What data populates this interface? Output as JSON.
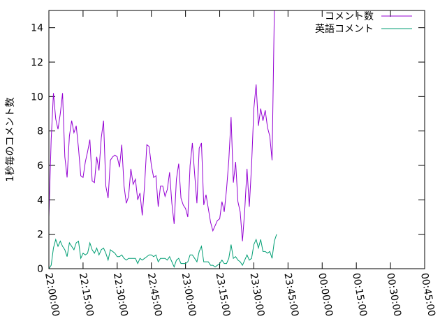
{
  "chart_data": {
    "type": "line",
    "title": "",
    "xlabel": "",
    "ylabel": "1秒毎のコメント数",
    "xlim": [
      0,
      165
    ],
    "ylim": [
      0,
      15
    ],
    "x_ticks": [
      {
        "value": 0,
        "label": "22:00:00"
      },
      {
        "value": 15,
        "label": "22:15:00"
      },
      {
        "value": 30,
        "label": "22:30:00"
      },
      {
        "value": 45,
        "label": "22:45:00"
      },
      {
        "value": 60,
        "label": "23:00:00"
      },
      {
        "value": 75,
        "label": "23:15:00"
      },
      {
        "value": 90,
        "label": "23:30:00"
      },
      {
        "value": 105,
        "label": "23:45:00"
      },
      {
        "value": 120,
        "label": "00:00:00"
      },
      {
        "value": 135,
        "label": "00:15:00"
      },
      {
        "value": 150,
        "label": "00:30:00"
      },
      {
        "value": 165,
        "label": "00:45:00"
      }
    ],
    "y_ticks": [
      0,
      2,
      4,
      6,
      8,
      10,
      12,
      14
    ],
    "grid": false,
    "legend": "top-right",
    "series": [
      {
        "name": "コメント数",
        "color": "#9400d3",
        "points": [
          [
            0,
            3.0
          ],
          [
            1,
            7.5
          ],
          [
            2,
            10.2
          ],
          [
            3,
            8.7
          ],
          [
            4,
            8.1
          ],
          [
            5,
            9.0
          ],
          [
            6,
            10.2
          ],
          [
            7,
            6.5
          ],
          [
            8,
            5.3
          ],
          [
            9,
            7.7
          ],
          [
            10,
            8.6
          ],
          [
            11,
            7.9
          ],
          [
            12,
            8.3
          ],
          [
            13,
            7.0
          ],
          [
            14,
            5.4
          ],
          [
            15,
            5.3
          ],
          [
            16,
            6.2
          ],
          [
            17,
            6.8
          ],
          [
            18,
            7.5
          ],
          [
            19,
            5.1
          ],
          [
            20,
            5.0
          ],
          [
            21,
            6.5
          ],
          [
            22,
            5.7
          ],
          [
            23,
            7.6
          ],
          [
            24,
            8.6
          ],
          [
            25,
            4.8
          ],
          [
            26,
            4.1
          ],
          [
            27,
            6.3
          ],
          [
            28,
            6.5
          ],
          [
            29,
            6.6
          ],
          [
            30,
            6.5
          ],
          [
            31,
            5.9
          ],
          [
            32,
            7.2
          ],
          [
            33,
            4.8
          ],
          [
            34,
            3.8
          ],
          [
            35,
            4.2
          ],
          [
            36,
            5.8
          ],
          [
            37,
            4.9
          ],
          [
            38,
            5.2
          ],
          [
            39,
            4.0
          ],
          [
            40,
            4.4
          ],
          [
            41,
            3.1
          ],
          [
            42,
            4.8
          ],
          [
            43,
            7.2
          ],
          [
            44,
            7.1
          ],
          [
            45,
            6.0
          ],
          [
            46,
            5.3
          ],
          [
            47,
            5.4
          ],
          [
            48,
            3.6
          ],
          [
            49,
            4.8
          ],
          [
            50,
            4.8
          ],
          [
            51,
            4.2
          ],
          [
            52,
            4.6
          ],
          [
            53,
            5.6
          ],
          [
            54,
            3.8
          ],
          [
            55,
            2.6
          ],
          [
            56,
            5.2
          ],
          [
            57,
            6.1
          ],
          [
            58,
            4.1
          ],
          [
            59,
            3.7
          ],
          [
            60,
            3.5
          ],
          [
            61,
            3.0
          ],
          [
            62,
            6.0
          ],
          [
            63,
            7.3
          ],
          [
            64,
            5.5
          ],
          [
            65,
            3.8
          ],
          [
            66,
            7.0
          ],
          [
            67,
            7.3
          ],
          [
            68,
            3.7
          ],
          [
            69,
            4.3
          ],
          [
            70,
            3.5
          ],
          [
            71,
            2.7
          ],
          [
            72,
            2.2
          ],
          [
            73,
            2.5
          ],
          [
            74,
            2.8
          ],
          [
            75,
            2.9
          ],
          [
            76,
            3.9
          ],
          [
            77,
            3.3
          ],
          [
            78,
            4.6
          ],
          [
            79,
            6.3
          ],
          [
            80,
            8.8
          ],
          [
            81,
            5.0
          ],
          [
            82,
            6.2
          ],
          [
            83,
            3.9
          ],
          [
            84,
            3.3
          ],
          [
            85,
            1.6
          ],
          [
            86,
            3.4
          ],
          [
            87,
            5.8
          ],
          [
            88,
            3.6
          ],
          [
            89,
            6.0
          ],
          [
            90,
            9.3
          ],
          [
            91,
            10.7
          ],
          [
            92,
            8.3
          ],
          [
            93,
            9.3
          ],
          [
            94,
            8.6
          ],
          [
            95,
            9.2
          ],
          [
            96,
            8.2
          ],
          [
            97,
            7.7
          ],
          [
            98,
            6.3
          ],
          [
            99,
            15.0
          ]
        ]
      },
      {
        "name": "英語コメント",
        "color": "#009e73",
        "points": [
          [
            0,
            0.0
          ],
          [
            1,
            0.2
          ],
          [
            2,
            1.2
          ],
          [
            3,
            1.7
          ],
          [
            4,
            1.3
          ],
          [
            5,
            1.6
          ],
          [
            6,
            1.3
          ],
          [
            7,
            1.1
          ],
          [
            8,
            0.7
          ],
          [
            9,
            1.5
          ],
          [
            10,
            1.3
          ],
          [
            11,
            1.1
          ],
          [
            12,
            1.5
          ],
          [
            13,
            1.6
          ],
          [
            14,
            0.6
          ],
          [
            15,
            0.9
          ],
          [
            16,
            0.8
          ],
          [
            17,
            0.9
          ],
          [
            18,
            1.5
          ],
          [
            19,
            1.1
          ],
          [
            20,
            0.9
          ],
          [
            21,
            1.2
          ],
          [
            22,
            0.8
          ],
          [
            23,
            1.1
          ],
          [
            24,
            1.2
          ],
          [
            25,
            0.9
          ],
          [
            26,
            0.5
          ],
          [
            27,
            1.1
          ],
          [
            28,
            1.0
          ],
          [
            29,
            0.9
          ],
          [
            30,
            0.7
          ],
          [
            31,
            0.7
          ],
          [
            32,
            0.8
          ],
          [
            33,
            0.6
          ],
          [
            34,
            0.5
          ],
          [
            35,
            0.6
          ],
          [
            36,
            0.6
          ],
          [
            37,
            0.6
          ],
          [
            38,
            0.6
          ],
          [
            39,
            0.3
          ],
          [
            40,
            0.6
          ],
          [
            41,
            0.5
          ],
          [
            42,
            0.6
          ],
          [
            43,
            0.7
          ],
          [
            44,
            0.8
          ],
          [
            45,
            0.8
          ],
          [
            46,
            0.7
          ],
          [
            47,
            0.8
          ],
          [
            48,
            0.4
          ],
          [
            49,
            0.6
          ],
          [
            50,
            0.6
          ],
          [
            51,
            0.6
          ],
          [
            52,
            0.5
          ],
          [
            53,
            0.7
          ],
          [
            54,
            0.4
          ],
          [
            55,
            0.1
          ],
          [
            56,
            0.5
          ],
          [
            57,
            0.6
          ],
          [
            58,
            0.3
          ],
          [
            59,
            0.3
          ],
          [
            60,
            0.3
          ],
          [
            61,
            0.4
          ],
          [
            62,
            0.8
          ],
          [
            63,
            0.8
          ],
          [
            64,
            0.6
          ],
          [
            65,
            0.4
          ],
          [
            66,
            1.0
          ],
          [
            67,
            1.3
          ],
          [
            68,
            0.4
          ],
          [
            69,
            0.4
          ],
          [
            70,
            0.4
          ],
          [
            71,
            0.2
          ],
          [
            72,
            0.2
          ],
          [
            73,
            0.1
          ],
          [
            74,
            0.2
          ],
          [
            75,
            0.3
          ],
          [
            76,
            0.5
          ],
          [
            77,
            0.3
          ],
          [
            78,
            0.3
          ],
          [
            79,
            0.6
          ],
          [
            80,
            1.4
          ],
          [
            81,
            0.6
          ],
          [
            82,
            0.7
          ],
          [
            83,
            0.5
          ],
          [
            84,
            0.4
          ],
          [
            85,
            0.2
          ],
          [
            86,
            0.5
          ],
          [
            87,
            0.8
          ],
          [
            88,
            0.5
          ],
          [
            89,
            0.6
          ],
          [
            90,
            1.4
          ],
          [
            91,
            1.7
          ],
          [
            92,
            1.2
          ],
          [
            93,
            1.7
          ],
          [
            94,
            1.0
          ],
          [
            95,
            1.0
          ],
          [
            96,
            0.9
          ],
          [
            97,
            1.0
          ],
          [
            98,
            0.6
          ],
          [
            99,
            1.6
          ],
          [
            100,
            2.0
          ]
        ]
      }
    ]
  }
}
